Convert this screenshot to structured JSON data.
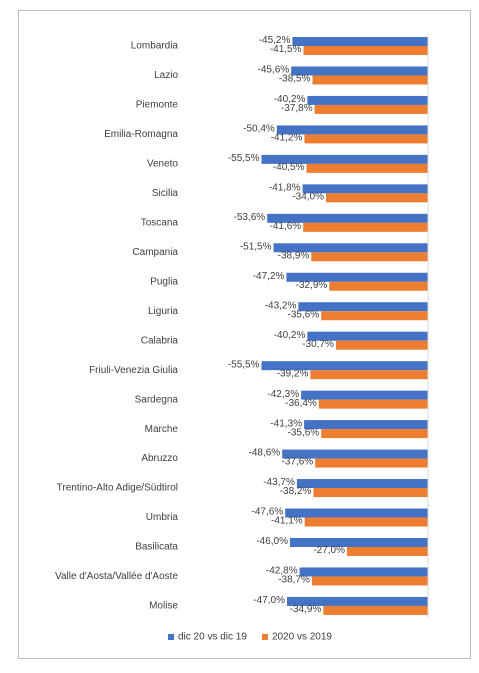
{
  "chart_data": {
    "type": "hbar",
    "categories": [
      "Lombardia",
      "Lazio",
      "Piemonte",
      "Emilia-Romagna",
      "Veneto",
      "Sicilia",
      "Toscana",
      "Campania",
      "Puglia",
      "Liguria",
      "Calabria",
      "Friuli-Venezia Giulia",
      "Sardegna",
      "Marche",
      "Abruzzo",
      "Trentino-Alto Adige/Südtirol",
      "Umbria",
      "Basilicata",
      "Valle d'Aosta/Vallée d'Aoste",
      "Molise"
    ],
    "series": [
      {
        "name": "dic 20 vs dic 19",
        "color": "#4472c4",
        "values": [
          -45.2,
          -45.6,
          -40.2,
          -50.4,
          -55.5,
          -41.8,
          -53.6,
          -51.5,
          -47.2,
          -43.2,
          -40.2,
          -55.5,
          -42.3,
          -41.3,
          -48.6,
          -43.7,
          -47.6,
          -46.0,
          -42.8,
          -47.0
        ],
        "value_labels": [
          "-45,2%",
          "-45,6%",
          "-40,2%",
          "-50,4%",
          "-55,5%",
          "-41,8%",
          "-53,6%",
          "-51,5%",
          "-47,2%",
          "-43,2%",
          "-40,2%",
          "-55,5%",
          "-42,3%",
          "-41,3%",
          "-48,6%",
          "-43,7%",
          "-47,6%",
          "-46,0%",
          "-42,8%",
          "-47,0%"
        ]
      },
      {
        "name": "2020 vs 2019",
        "color": "#ed7d31",
        "values": [
          -41.5,
          -38.5,
          -37.8,
          -41.2,
          -40.5,
          -34.0,
          -41.6,
          -38.9,
          -32.9,
          -35.6,
          -30.7,
          -39.2,
          -36.4,
          -35.6,
          -37.6,
          -38.2,
          -41.1,
          -27.0,
          -38.7,
          -34.9
        ],
        "value_labels": [
          "-41,5%",
          "-38,5%",
          "-37,8%",
          "-41,2%",
          "-40,5%",
          "-34,0%",
          "-41,6%",
          "-38,9%",
          "-32,9%",
          "-35,6%",
          "-30,7%",
          "-39,2%",
          "-36,4%",
          "-35,6%",
          "-37,6%",
          "-38,2%",
          "-41,1%",
          "-27,0%",
          "-38,7%",
          "-34,9%"
        ]
      }
    ],
    "xlim": [
      -60,
      0
    ]
  }
}
